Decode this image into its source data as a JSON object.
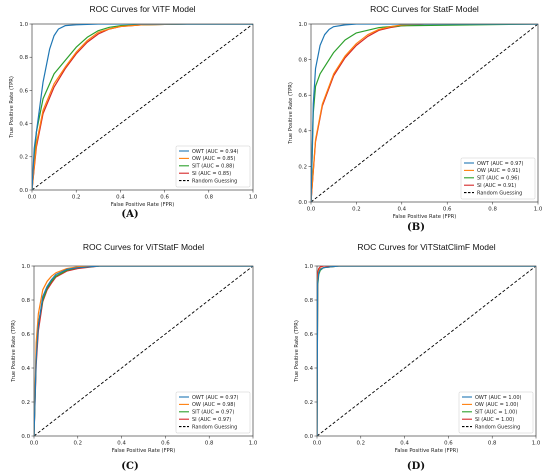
{
  "chart_data": [
    {
      "type": "line",
      "title": "ROC Curves for ViTF Model",
      "caption": "(A)",
      "xlabel": "False Positive Rate (FPR)",
      "ylabel": "True Positive Rate (TPR)",
      "xlim": [
        0,
        1
      ],
      "ylim": [
        0,
        1
      ],
      "xticks": [
        "0.0",
        "0.2",
        "0.4",
        "0.6",
        "0.8",
        "1.0"
      ],
      "yticks": [
        "0.0",
        "0.2",
        "0.4",
        "0.6",
        "0.8",
        "1.0"
      ],
      "legend_position": "lower-right",
      "series": [
        {
          "name": "OWT (AUC = 0.94)",
          "color": "#1f77b4",
          "x": [
            0,
            0.01,
            0.03,
            0.05,
            0.08,
            0.1,
            0.12,
            0.15,
            0.2,
            0.3,
            0.5,
            1.0
          ],
          "y": [
            0,
            0.25,
            0.45,
            0.65,
            0.85,
            0.93,
            0.97,
            0.99,
            0.995,
            1.0,
            1.0,
            1.0
          ]
        },
        {
          "name": "OW (AUC = 0.85)",
          "color": "#ff7f0e",
          "x": [
            0,
            0.02,
            0.05,
            0.1,
            0.15,
            0.2,
            0.25,
            0.3,
            0.35,
            0.4,
            0.5,
            0.7,
            1.0
          ],
          "y": [
            0,
            0.28,
            0.48,
            0.64,
            0.74,
            0.83,
            0.9,
            0.95,
            0.97,
            0.985,
            0.995,
            1.0,
            1.0
          ]
        },
        {
          "name": "SIT (AUC = 0.88)",
          "color": "#2ca02c",
          "x": [
            0,
            0.02,
            0.05,
            0.1,
            0.15,
            0.2,
            0.25,
            0.3,
            0.35,
            0.4,
            0.5,
            0.7,
            1.0
          ],
          "y": [
            0,
            0.35,
            0.55,
            0.7,
            0.78,
            0.86,
            0.92,
            0.96,
            0.98,
            0.99,
            0.995,
            1.0,
            1.0
          ]
        },
        {
          "name": "SI (AUC = 0.85)",
          "color": "#d62728",
          "x": [
            0,
            0.02,
            0.05,
            0.1,
            0.15,
            0.2,
            0.25,
            0.3,
            0.35,
            0.4,
            0.5,
            0.7,
            1.0
          ],
          "y": [
            0,
            0.26,
            0.46,
            0.62,
            0.73,
            0.82,
            0.89,
            0.94,
            0.97,
            0.985,
            0.995,
            1.0,
            1.0
          ]
        },
        {
          "name": "Random Guessing",
          "color": "#000000",
          "dashed": true,
          "x": [
            0,
            1
          ],
          "y": [
            0,
            1
          ]
        }
      ]
    },
    {
      "type": "line",
      "title": "ROC Curves for StatF Model",
      "caption": "(B)",
      "xlabel": "False Positive Rate (FPR)",
      "ylabel": "True Positive Rate (TPR)",
      "xlim": [
        0,
        1
      ],
      "ylim": [
        0,
        1
      ],
      "xticks": [
        "0.0",
        "0.2",
        "0.4",
        "0.6",
        "0.8",
        "1.0"
      ],
      "yticks": [
        "0.0",
        "0.2",
        "0.4",
        "0.6",
        "0.8",
        "1.0"
      ],
      "legend_position": "lower-right",
      "series": [
        {
          "name": "OWT (AUC = 0.97)",
          "color": "#1f77b4",
          "x": [
            0,
            0.01,
            0.02,
            0.04,
            0.06,
            0.08,
            0.1,
            0.15,
            0.2,
            0.3,
            1.0
          ],
          "y": [
            0,
            0.55,
            0.75,
            0.88,
            0.94,
            0.97,
            0.985,
            0.995,
            1.0,
            1.0,
            1.0
          ]
        },
        {
          "name": "OW (AUC = 0.91)",
          "color": "#ff7f0e",
          "x": [
            0,
            0.02,
            0.05,
            0.1,
            0.15,
            0.2,
            0.25,
            0.3,
            0.35,
            0.4,
            0.5,
            1.0
          ],
          "y": [
            0,
            0.35,
            0.55,
            0.72,
            0.82,
            0.89,
            0.94,
            0.97,
            0.985,
            0.995,
            1.0,
            1.0
          ]
        },
        {
          "name": "SIT (AUC = 0.96)",
          "color": "#2ca02c",
          "x": [
            0,
            0.01,
            0.02,
            0.04,
            0.06,
            0.08,
            0.1,
            0.15,
            0.2,
            0.3,
            0.4,
            1.0
          ],
          "y": [
            0,
            0.5,
            0.65,
            0.72,
            0.76,
            0.8,
            0.84,
            0.91,
            0.95,
            0.98,
            0.99,
            1.0
          ]
        },
        {
          "name": "SI (AUC = 0.91)",
          "color": "#d62728",
          "x": [
            0,
            0.02,
            0.05,
            0.1,
            0.15,
            0.2,
            0.25,
            0.3,
            0.35,
            0.4,
            0.5,
            1.0
          ],
          "y": [
            0,
            0.34,
            0.54,
            0.71,
            0.81,
            0.88,
            0.93,
            0.965,
            0.98,
            0.99,
            1.0,
            1.0
          ]
        },
        {
          "name": "Random Guessing",
          "color": "#000000",
          "dashed": true,
          "x": [
            0,
            1
          ],
          "y": [
            0,
            1
          ]
        }
      ]
    },
    {
      "type": "line",
      "title": "ROC Curves for ViTStatF Model",
      "caption": "(C)",
      "xlabel": "False Positive Rate (FPR)",
      "ylabel": "True Positive Rate (TPR)",
      "xlim": [
        0,
        1
      ],
      "ylim": [
        0,
        1
      ],
      "xticks": [
        "0.0",
        "0.2",
        "0.4",
        "0.6",
        "0.8",
        "1.0"
      ],
      "yticks": [
        "0.0",
        "0.2",
        "0.4",
        "0.6",
        "0.8",
        "1.0"
      ],
      "legend_position": "lower-right",
      "series": [
        {
          "name": "OWT (AUC = 0.97)",
          "color": "#1f77b4",
          "x": [
            0,
            0.01,
            0.02,
            0.04,
            0.06,
            0.08,
            0.1,
            0.15,
            0.2,
            0.3,
            1.0
          ],
          "y": [
            0,
            0.45,
            0.65,
            0.82,
            0.88,
            0.92,
            0.95,
            0.98,
            0.99,
            1.0,
            1.0
          ]
        },
        {
          "name": "OW (AUC = 0.98)",
          "color": "#ff7f0e",
          "x": [
            0,
            0.01,
            0.02,
            0.04,
            0.06,
            0.08,
            0.1,
            0.15,
            0.2,
            0.3,
            1.0
          ],
          "y": [
            0,
            0.55,
            0.72,
            0.86,
            0.91,
            0.94,
            0.96,
            0.985,
            0.995,
            1.0,
            1.0
          ]
        },
        {
          "name": "SIT (AUC = 0.97)",
          "color": "#2ca02c",
          "x": [
            0,
            0.01,
            0.02,
            0.04,
            0.06,
            0.08,
            0.1,
            0.15,
            0.2,
            0.3,
            1.0
          ],
          "y": [
            0,
            0.48,
            0.66,
            0.8,
            0.87,
            0.91,
            0.94,
            0.975,
            0.99,
            1.0,
            1.0
          ]
        },
        {
          "name": "SI (AUC = 0.97)",
          "color": "#d62728",
          "x": [
            0,
            0.01,
            0.02,
            0.04,
            0.06,
            0.08,
            0.1,
            0.15,
            0.2,
            0.3,
            1.0
          ],
          "y": [
            0,
            0.42,
            0.62,
            0.79,
            0.86,
            0.9,
            0.935,
            0.97,
            0.985,
            1.0,
            1.0
          ]
        },
        {
          "name": "Random Guessing",
          "color": "#000000",
          "dashed": true,
          "x": [
            0,
            1
          ],
          "y": [
            0,
            1
          ]
        }
      ]
    },
    {
      "type": "line",
      "title": "ROC Curves for ViTStatClimF Model",
      "caption": "(D)",
      "xlabel": "False Positive Rate (FPR)",
      "ylabel": "True Positive Rate (TPR)",
      "xlim": [
        0,
        1
      ],
      "ylim": [
        0,
        1
      ],
      "xticks": [
        "0.0",
        "0.2",
        "0.4",
        "0.6",
        "0.8",
        "1.0"
      ],
      "yticks": [
        "0.0",
        "0.2",
        "0.4",
        "0.6",
        "0.8",
        "1.0"
      ],
      "legend_position": "lower-right",
      "series": [
        {
          "name": "OWT (AUC = 1.00)",
          "color": "#1f77b4",
          "x": [
            0,
            0.003,
            0.008,
            0.015,
            0.03,
            0.06,
            0.1,
            1.0
          ],
          "y": [
            0,
            0.9,
            0.96,
            0.98,
            0.99,
            0.995,
            1.0,
            1.0
          ]
        },
        {
          "name": "OW (AUC = 1.00)",
          "color": "#ff7f0e",
          "x": [
            0,
            0.003,
            0.008,
            0.015,
            0.03,
            0.06,
            0.1,
            1.0
          ],
          "y": [
            0,
            0.92,
            0.97,
            0.985,
            0.99,
            0.995,
            1.0,
            1.0
          ]
        },
        {
          "name": "SIT (AUC = 1.00)",
          "color": "#2ca02c",
          "x": [
            0,
            0.003,
            0.008,
            0.015,
            0.03,
            0.06,
            0.1,
            1.0
          ],
          "y": [
            0,
            0.88,
            0.95,
            0.975,
            0.99,
            0.995,
            1.0,
            1.0
          ]
        },
        {
          "name": "SI (AUC = 1.00)",
          "color": "#d62728",
          "x": [
            0,
            0.003,
            0.008,
            0.015,
            0.03,
            0.06,
            0.1,
            1.0
          ],
          "y": [
            0,
            0.96,
            0.985,
            0.995,
            1.0,
            1.0,
            1.0,
            1.0
          ]
        },
        {
          "name": "Random Guessing",
          "color": "#000000",
          "dashed": true,
          "x": [
            0,
            1
          ],
          "y": [
            0,
            1
          ]
        }
      ]
    }
  ]
}
